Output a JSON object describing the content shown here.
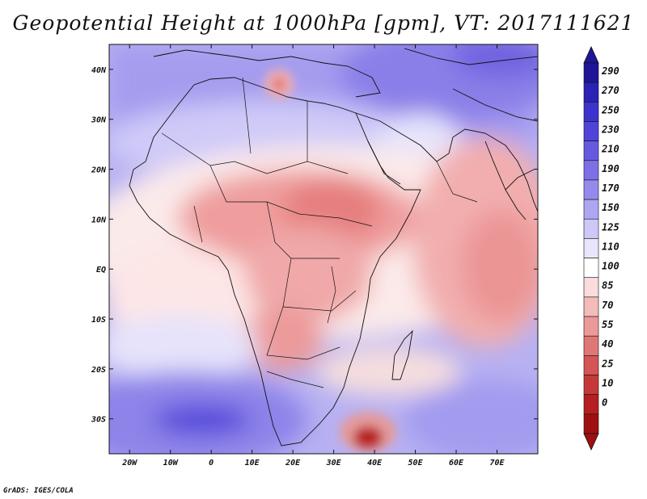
{
  "title": "Geopotential Height at 1000hPa [gpm], VT: 2017111621",
  "credit": "GrADS: IGES/COLA",
  "map": {
    "lon_range": [
      -25,
      80
    ],
    "lat_range": [
      -37,
      45
    ],
    "lat_ticks": [
      {
        "value": 40,
        "label": "40N"
      },
      {
        "value": 30,
        "label": "30N"
      },
      {
        "value": 20,
        "label": "20N"
      },
      {
        "value": 10,
        "label": "10N"
      },
      {
        "value": 0,
        "label": "EQ"
      },
      {
        "value": -10,
        "label": "10S"
      },
      {
        "value": -20,
        "label": "20S"
      },
      {
        "value": -30,
        "label": "30S"
      }
    ],
    "lon_ticks": [
      {
        "value": -20,
        "label": "20W"
      },
      {
        "value": -10,
        "label": "10W"
      },
      {
        "value": 0,
        "label": "0"
      },
      {
        "value": 10,
        "label": "10E"
      },
      {
        "value": 20,
        "label": "20E"
      },
      {
        "value": 30,
        "label": "30E"
      },
      {
        "value": 40,
        "label": "40E"
      },
      {
        "value": 50,
        "label": "50E"
      },
      {
        "value": 60,
        "label": "60E"
      },
      {
        "value": 70,
        "label": "70E"
      }
    ]
  },
  "colorbar": {
    "levels": [
      "290",
      "270",
      "250",
      "230",
      "210",
      "190",
      "170",
      "150",
      "125",
      "110",
      "100",
      "85",
      "70",
      "55",
      "40",
      "25",
      "10",
      "0"
    ],
    "colors": [
      "#1e1696",
      "#2a22b4",
      "#3c33cc",
      "#5044d8",
      "#6659e0",
      "#7d70e6",
      "#958aec",
      "#afa6f2",
      "#cdc8f8",
      "#e8e6fc",
      "#ffffff",
      "#fbdcdc",
      "#f4bbbb",
      "#eb9999",
      "#e07777",
      "#d45555",
      "#c63838",
      "#b51f1f",
      "#9e1010"
    ],
    "top_color": "#1e1696",
    "bottom_color": "#9e1010"
  }
}
